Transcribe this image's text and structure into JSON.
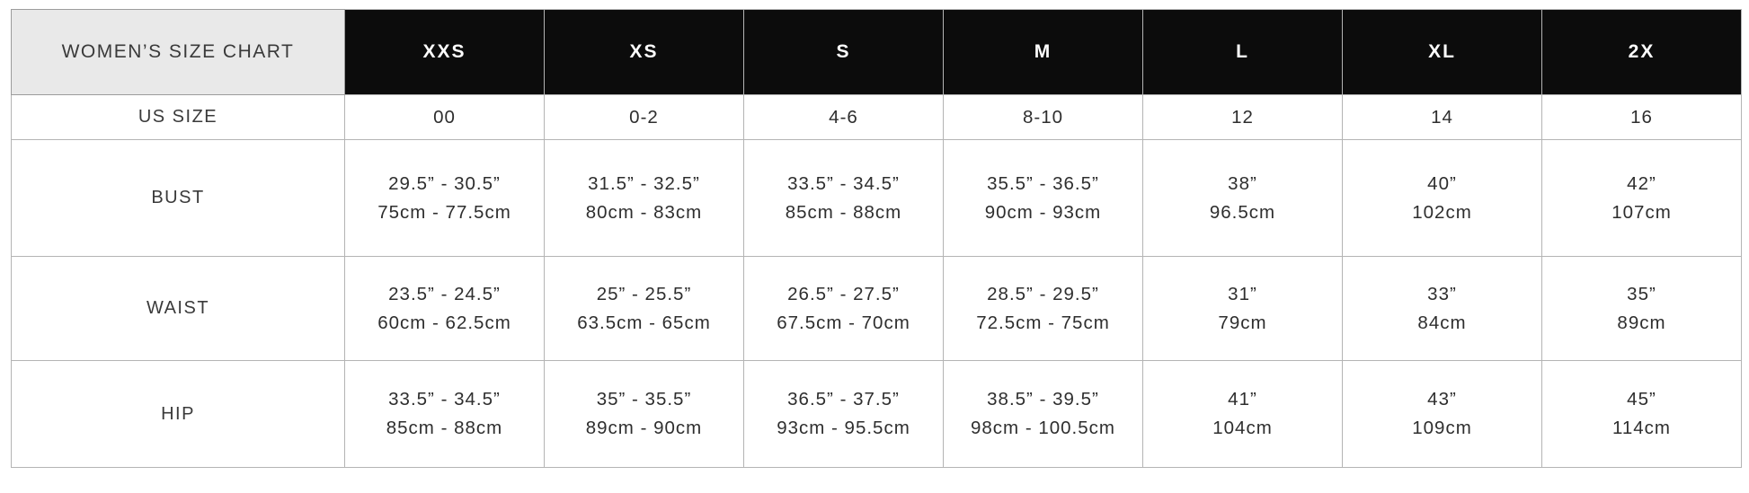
{
  "table": {
    "title": "WOMEN’S SIZE CHART",
    "sizes": [
      "XXS",
      "XS",
      "S",
      "M",
      "L",
      "XL",
      "2X"
    ],
    "rows": [
      {
        "label": "US SIZE",
        "cells": [
          [
            "00"
          ],
          [
            "0-2"
          ],
          [
            "4-6"
          ],
          [
            "8-10"
          ],
          [
            "12"
          ],
          [
            "14"
          ],
          [
            "16"
          ]
        ]
      },
      {
        "label": "BUST",
        "cells": [
          [
            "29.5” - 30.5”",
            "75cm - 77.5cm"
          ],
          [
            "31.5” - 32.5”",
            "80cm - 83cm"
          ],
          [
            "33.5” - 34.5”",
            "85cm - 88cm"
          ],
          [
            "35.5” - 36.5”",
            "90cm - 93cm"
          ],
          [
            "38”",
            "96.5cm"
          ],
          [
            "40”",
            "102cm"
          ],
          [
            "42”",
            "107cm"
          ]
        ]
      },
      {
        "label": "WAIST",
        "cells": [
          [
            "23.5” - 24.5”",
            "60cm - 62.5cm"
          ],
          [
            "25” - 25.5”",
            "63.5cm - 65cm"
          ],
          [
            "26.5” - 27.5”",
            "67.5cm - 70cm"
          ],
          [
            "28.5” - 29.5”",
            "72.5cm - 75cm"
          ],
          [
            "31”",
            "79cm"
          ],
          [
            "33”",
            "84cm"
          ],
          [
            "35”",
            "89cm"
          ]
        ]
      },
      {
        "label": "HIP",
        "cells": [
          [
            "33.5” - 34.5”",
            "85cm - 88cm"
          ],
          [
            "35” - 35.5”",
            "89cm - 90cm"
          ],
          [
            "36.5” - 37.5”",
            "93cm - 95.5cm"
          ],
          [
            "38.5” - 39.5”",
            "98cm - 100.5cm"
          ],
          [
            "41”",
            "104cm"
          ],
          [
            "43”",
            "109cm"
          ],
          [
            "45”",
            "114cm"
          ]
        ]
      }
    ]
  },
  "colors": {
    "header_bg": "#0c0c0c",
    "header_text": "#ffffff",
    "title_cell_bg": "#e9e9e9",
    "grid_border": "#b4b4b4",
    "text": "#2e2e2e"
  }
}
